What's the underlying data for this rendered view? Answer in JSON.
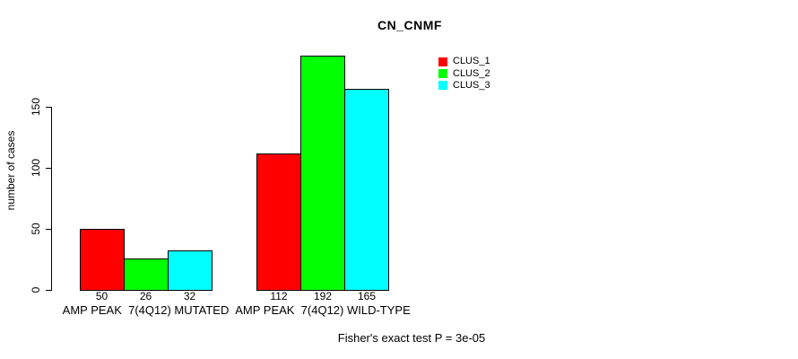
{
  "chart_data": {
    "type": "bar",
    "title": "CN_CNMF",
    "categories": [
      "AMP PEAK  7(4Q12) MUTATED",
      "AMP PEAK  7(4Q12) WILD-TYPE"
    ],
    "series": [
      {
        "name": "CLUS_1",
        "color": "#ff0000",
        "values": [
          50,
          112
        ]
      },
      {
        "name": "CLUS_2",
        "color": "#00ff00",
        "values": [
          26,
          192
        ]
      },
      {
        "name": "CLUS_3",
        "color": "#00ffff",
        "values": [
          32,
          165
        ]
      }
    ],
    "bar_value_labels": [
      [
        "50",
        "26",
        "32"
      ],
      [
        "112",
        "192",
        "165"
      ]
    ],
    "ylabel": "number of cases",
    "xlabel": "",
    "yticks": [
      0,
      50,
      100,
      150
    ],
    "ylim": [
      0,
      200
    ],
    "grid": false,
    "legend_position": "top-right",
    "annotation": "Fisher's exact test P = 3e-05"
  }
}
